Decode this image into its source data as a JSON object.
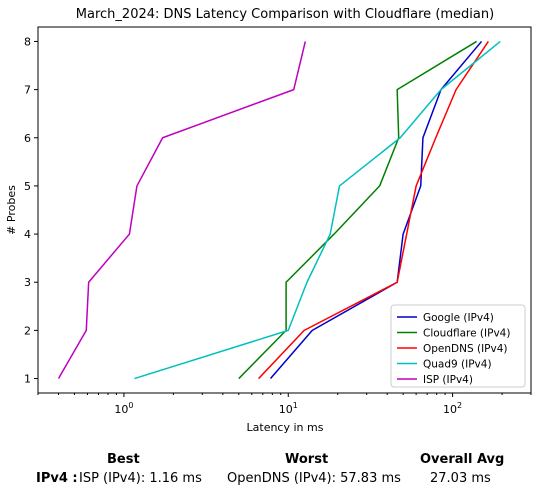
{
  "chart_data": {
    "type": "line",
    "title": "March_2024: DNS Latency Comparison with Cloudflare (median)",
    "xlabel": "Latency in ms",
    "ylabel": "# Probes",
    "xscale": "log",
    "xlim": [
      0.3,
      300
    ],
    "ylim": [
      0.7,
      8.3
    ],
    "xticks": [
      {
        "value": 1,
        "label": "10",
        "exp": "0"
      },
      {
        "value": 10,
        "label": "10",
        "exp": "1"
      },
      {
        "value": 100,
        "label": "10",
        "exp": "2"
      }
    ],
    "yticks": [
      "1",
      "2",
      "3",
      "4",
      "5",
      "6",
      "7",
      "8"
    ],
    "grid": false,
    "legend_position": "lower-right",
    "series": [
      {
        "name": "Google (IPv4)",
        "color": "#0000cc",
        "points": [
          [
            7.8,
            1
          ],
          [
            14,
            2
          ],
          [
            46,
            3
          ],
          [
            50,
            4
          ],
          [
            64,
            5
          ],
          [
            66,
            6
          ],
          [
            85,
            7
          ],
          [
            150,
            8
          ]
        ]
      },
      {
        "name": "Cloudflare (IPv4)",
        "color": "#008000",
        "points": [
          [
            5,
            1
          ],
          [
            9.7,
            2
          ],
          [
            9.7,
            3
          ],
          [
            19,
            4
          ],
          [
            36,
            5
          ],
          [
            47,
            6
          ],
          [
            46,
            7
          ],
          [
            140,
            8
          ]
        ]
      },
      {
        "name": "OpenDNS (IPv4)",
        "color": "#ff0000",
        "points": [
          [
            6.6,
            1
          ],
          [
            12.5,
            2
          ],
          [
            46,
            3
          ],
          [
            60,
            5
          ],
          [
            79,
            6
          ],
          [
            105,
            7
          ],
          [
            165,
            8
          ]
        ]
      },
      {
        "name": "Quad9 (IPv4)",
        "color": "#00bfbf",
        "points": [
          [
            1.16,
            1
          ],
          [
            10,
            2
          ],
          [
            13,
            3
          ],
          [
            18,
            4
          ],
          [
            20.5,
            5
          ],
          [
            48,
            6
          ],
          [
            85,
            7
          ],
          [
            195,
            8
          ]
        ]
      },
      {
        "name": "ISP (IPv4)",
        "color": "#bf00bf",
        "points": [
          [
            0.4,
            1
          ],
          [
            0.59,
            2
          ],
          [
            0.61,
            3
          ],
          [
            1.08,
            4
          ],
          [
            1.2,
            5
          ],
          [
            1.72,
            6
          ],
          [
            10.8,
            7
          ],
          [
            12.7,
            8
          ]
        ]
      }
    ]
  },
  "summary": {
    "best_header": "Best",
    "worst_header": "Worst",
    "avg_header": "Overall Avg",
    "row_label": "IPv4 :",
    "best_value": "ISP (IPv4): 1.16 ms",
    "worst_value": "OpenDNS (IPv4): 57.83 ms",
    "avg_value": "27.03 ms"
  }
}
